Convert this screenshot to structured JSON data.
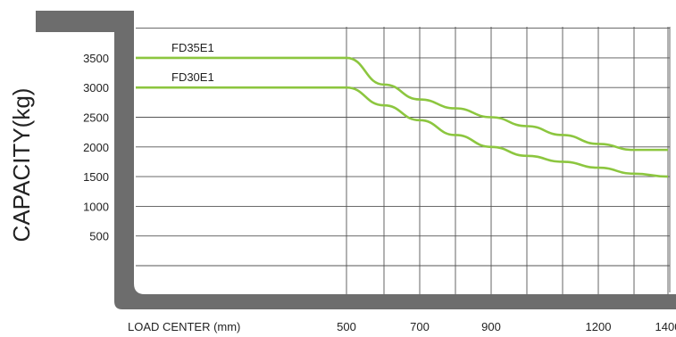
{
  "chart_data": {
    "type": "line",
    "title": "",
    "xlabel": "LOAD CENTER (mm)",
    "ylabel": "CAPACITY(kg)",
    "x_ticks": [
      500,
      700,
      900,
      1200,
      1400
    ],
    "x_tick_labels": [
      "500",
      "700",
      "900",
      "1200",
      "1400"
    ],
    "y_ticks": [
      500,
      1000,
      1500,
      2000,
      2500,
      3000,
      3500
    ],
    "y_tick_labels": [
      "500",
      "1000",
      "1500",
      "2000",
      "2500",
      "3000",
      "3500"
    ],
    "grid": true,
    "line_color": "#8cc63f",
    "frame_color": "#6d6d6d",
    "series": [
      {
        "name": "FD35E1",
        "points": [
          [
            0,
            3500
          ],
          [
            500,
            3500
          ],
          [
            600,
            3050
          ],
          [
            700,
            2800
          ],
          [
            800,
            2650
          ],
          [
            900,
            2500
          ],
          [
            1000,
            2350
          ],
          [
            1100,
            2200
          ],
          [
            1200,
            2050
          ],
          [
            1300,
            1950
          ],
          [
            1400,
            1950
          ]
        ]
      },
      {
        "name": "FD30E1",
        "points": [
          [
            0,
            3000
          ],
          [
            500,
            3000
          ],
          [
            600,
            2700
          ],
          [
            700,
            2450
          ],
          [
            800,
            2200
          ],
          [
            900,
            2000
          ],
          [
            1000,
            1850
          ],
          [
            1100,
            1750
          ],
          [
            1200,
            1650
          ],
          [
            1300,
            1550
          ],
          [
            1400,
            1500
          ]
        ]
      }
    ]
  }
}
